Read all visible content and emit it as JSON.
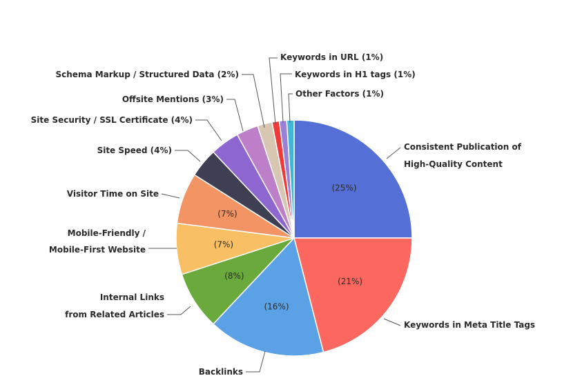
{
  "chart_data": {
    "type": "pie",
    "title": "",
    "series": [
      {
        "label": [
          "Consistent Publication of",
          "High-Quality Content"
        ],
        "value": 25,
        "color": "#5470d6",
        "show_pct": true
      },
      {
        "label": [
          "Keywords in Meta Title Tags"
        ],
        "value": 21,
        "color": "#fc6760",
        "show_pct": true
      },
      {
        "label": [
          "Backlinks"
        ],
        "value": 16,
        "color": "#5aa2e5",
        "show_pct": true
      },
      {
        "label": [
          "Internal Links",
          "from Related Articles"
        ],
        "value": 8,
        "color": "#6aa93b",
        "show_pct": true
      },
      {
        "label": [
          "Mobile-Friendly /",
          "Mobile-First Website"
        ],
        "value": 7,
        "color": "#f8bf64",
        "show_pct": true
      },
      {
        "label": [
          "Visitor Time on Site"
        ],
        "value": 7,
        "color": "#f39465",
        "show_pct": true
      },
      {
        "label": [
          "Site Speed (4%)"
        ],
        "value": 4,
        "color": "#3f3f53",
        "show_pct": false
      },
      {
        "label": [
          "Site Security / SSL Certificate (4%)"
        ],
        "value": 4,
        "color": "#8d67cf",
        "show_pct": false
      },
      {
        "label": [
          "Offsite Mentions (3%)"
        ],
        "value": 3,
        "color": "#be7fc9",
        "show_pct": false
      },
      {
        "label": [
          "Schema Markup / Structured Data (2%)"
        ],
        "value": 2,
        "color": "#d6c6b2",
        "show_pct": false
      },
      {
        "label": [
          "Keywords in URL (1%)"
        ],
        "value": 1,
        "color": "#ef3a3a",
        "show_pct": false
      },
      {
        "label": [
          "Keywords in H1 tags (1%)"
        ],
        "value": 1,
        "color": "#9a80d8",
        "show_pct": false
      },
      {
        "label": [
          "Other Factors (1%)"
        ],
        "value": 1,
        "color": "#43b6d8",
        "show_pct": false
      }
    ]
  }
}
